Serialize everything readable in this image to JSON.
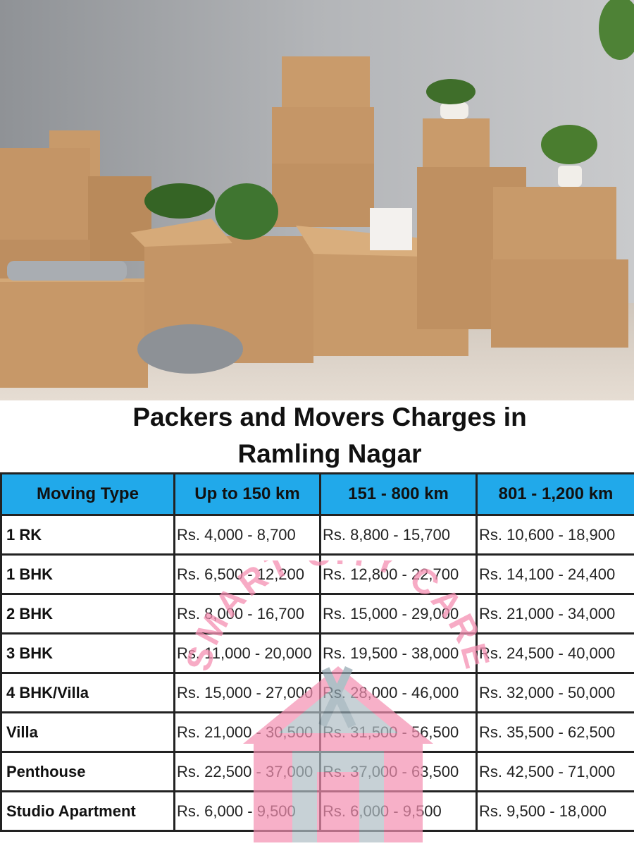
{
  "title": {
    "line1": "Packers and Movers Charges in",
    "line2": "Ramling Nagar"
  },
  "table": {
    "headers": [
      "Moving Type",
      "Up to 150 km",
      "151 - 800 km",
      "801 - 1,200 km"
    ],
    "rows": [
      {
        "type": "1 RK",
        "c1": "Rs. 4,000 - 8,700",
        "c2": "Rs. 8,800 - 15,700",
        "c3": "Rs. 10,600 - 18,900"
      },
      {
        "type": "1 BHK",
        "c1": "Rs. 6,500 - 12,200",
        "c2": "Rs. 12,800 - 22,700",
        "c3": "Rs. 14,100 - 24,400"
      },
      {
        "type": "2 BHK",
        "c1": "Rs. 8,000 - 16,700",
        "c2": "Rs. 15,000 - 29,000",
        "c3": "Rs. 21,000 - 34,000"
      },
      {
        "type": "3 BHK",
        "c1": "Rs. 11,000 - 20,000",
        "c2": "Rs. 19,500 - 38,000",
        "c3": "Rs. 24,500 - 40,000"
      },
      {
        "type": "4 BHK/Villa",
        "c1": "Rs. 15,000 - 27,000",
        "c2": "Rs. 28,000 - 46,000",
        "c3": "Rs. 32,000 - 50,000"
      },
      {
        "type": "Villa",
        "c1": "Rs. 21,000 - 30,500",
        "c2": "Rs. 31,500 - 56,500",
        "c3": "Rs. 35,500 - 62,500"
      },
      {
        "type": "Penthouse",
        "c1": "Rs. 22,500 - 37,000",
        "c2": "Rs. 37,000 - 63,500",
        "c3": "Rs. 42,500 - 71,000"
      },
      {
        "type": "Studio Apartment",
        "c1": "Rs. 6,000 - 9,500",
        "c2": "Rs. 6,000 - 9,500",
        "c3": "Rs. 9,500 - 18,000"
      }
    ]
  },
  "watermark": {
    "text": "SMART CITY CARE",
    "icon": "house-wrench-logo",
    "color": "#f48fb1"
  },
  "colors": {
    "header_bg": "#21a9ea",
    "border": "#222222"
  }
}
